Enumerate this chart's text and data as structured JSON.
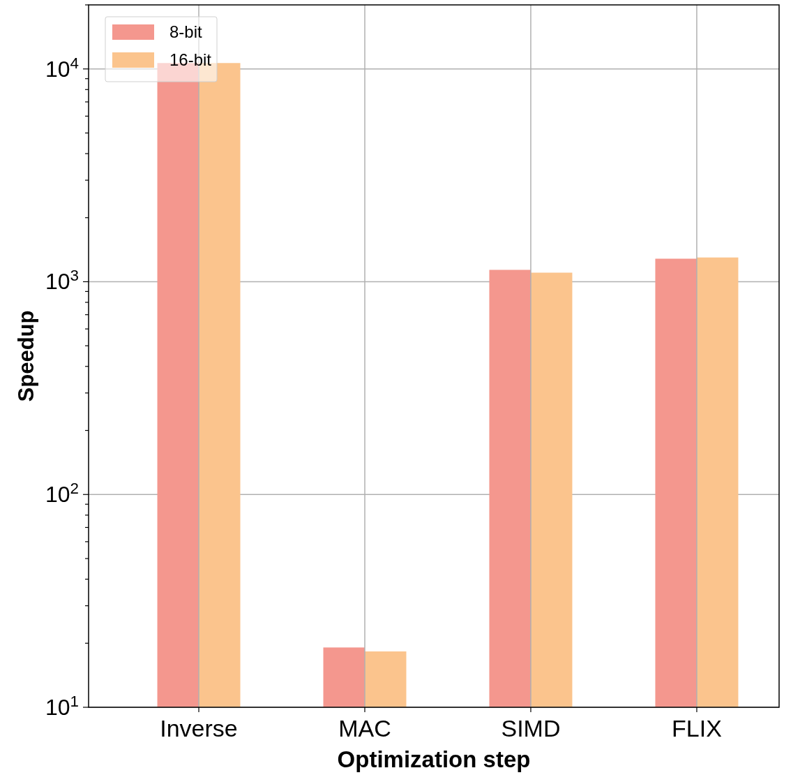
{
  "chart_data": {
    "type": "bar",
    "xlabel": "Optimization step",
    "ylabel": "Speedup",
    "categories": [
      "Inverse",
      "MAC",
      "SIMD",
      "FLIX"
    ],
    "series": [
      {
        "name": "8-bit",
        "color": "#f4978e",
        "values": [
          10660,
          19.1,
          1137,
          1283
        ]
      },
      {
        "name": "16-bit",
        "color": "#fbc48d",
        "values": [
          10660,
          18.3,
          1103,
          1300
        ]
      }
    ],
    "log": true,
    "ylim": [
      10,
      20000
    ],
    "yticks": [
      {
        "value": 10,
        "label": "10$^{1}$"
      },
      {
        "value": 20,
        "label": null
      },
      {
        "value": 30,
        "label": null
      },
      {
        "value": 40,
        "label": null
      },
      {
        "value": 50,
        "label": null
      },
      {
        "value": 60,
        "label": null
      },
      {
        "value": 70,
        "label": null
      },
      {
        "value": 80,
        "label": null
      },
      {
        "value": 90,
        "label": null
      },
      {
        "value": 100,
        "label": "10$^{2}$"
      },
      {
        "value": 200,
        "label": null
      },
      {
        "value": 300,
        "label": null
      },
      {
        "value": 400,
        "label": null
      },
      {
        "value": 500,
        "label": null
      },
      {
        "value": 600,
        "label": null
      },
      {
        "value": 700,
        "label": null
      },
      {
        "value": 800,
        "label": null
      },
      {
        "value": 900,
        "label": null
      },
      {
        "value": 1000,
        "label": "10$^{3}$"
      },
      {
        "value": 2000,
        "label": null
      },
      {
        "value": 3000,
        "label": null
      },
      {
        "value": 4000,
        "label": null
      },
      {
        "value": 5000,
        "label": null
      },
      {
        "value": 6000,
        "label": null
      },
      {
        "value": 7000,
        "label": null
      },
      {
        "value": 8000,
        "label": null
      },
      {
        "value": 9000,
        "label": null
      },
      {
        "value": 10000,
        "label": "10$^{4}$"
      },
      {
        "value": 20000,
        "label": null
      }
    ],
    "grid": true,
    "legend": "top left"
  }
}
